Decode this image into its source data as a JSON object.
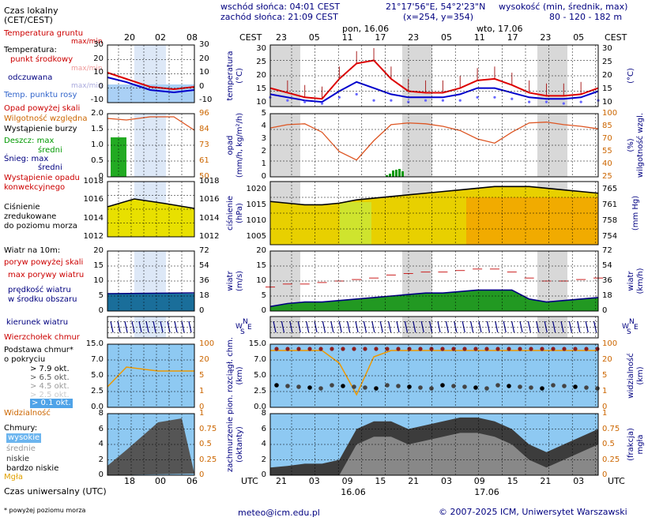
{
  "header": {
    "sunrise": "wschód słońca: 04:01 CEST",
    "sunset": "zachód słońca: 21:09 CEST",
    "coords": "21°17'56\"E, 54°2'23\"N",
    "grid": "(x=254,  y=354)",
    "elevation_title": "wysokość (min, średnik, max)",
    "elevation_values": "80 - 120 - 182 m",
    "time_label_cest": "CEST",
    "day1": "pon, 16.06",
    "day2": "wto, 17.06",
    "top_hours": [
      "23",
      "05",
      "11",
      "17",
      "23",
      "05",
      "11",
      "17",
      "23",
      "05"
    ],
    "legend_local_time": "Czas lokalny\n(CET/CEST)",
    "legend_hours_top": [
      "20",
      "02",
      "08"
    ]
  },
  "legend": {
    "temp_ground": "Temperatura gruntu",
    "temp_ground_sub": "max/min",
    "temperature": "Temperatura:",
    "dew_point_mid": "punkt środkowy",
    "dew_max_min": "max/min",
    "felt": "odczuwana",
    "felt_max_min": "max/min",
    "dew_point": "Temp. punktu rosy",
    "precip_over": "Opad powyżej skali",
    "humidity": "Wilgotność względna",
    "storm": "Wystąpienie burzy",
    "rain": "Deszcz: max",
    "rain_mean": "średni",
    "snow": "Śnieg: max",
    "snow_mean": "średni",
    "precip_conv": "Wystąpienie opadu\nkonwekcyjnego",
    "pressure": "Ciśnienie\nzredukowane\ndo poziomu morza",
    "wind_10m": "Wiatr na 10m:",
    "gust_over": "poryw powyżej skali",
    "max_gust": "max porywy wiatru",
    "wind_speed": "prędkość wiatru\nw środku obszaru",
    "wind_dir": "kierunek wiatru",
    "cloud_top": "Wierzchołek chmur",
    "cloud_base": "Podstawa chmur*\no pokryciu",
    "okt79": "> 7.9 okt.",
    "okt65": "> 6.5 okt.",
    "okt45": "> 4.5 okt.",
    "okt25": "> 2.5 okt.",
    "okt01": "> 0.1 okt.",
    "visibility": "Widzialność",
    "clouds": "Chmury:",
    "cl_high": "wysokie",
    "cl_mid": "średnie",
    "cl_low": "niskie",
    "cl_vlow": "bardzo niskie",
    "fog": "Mgła",
    "utc_time": "Czas uniwersalny (UTC)",
    "footnote": "* powyżej poziomu morza",
    "legend_hours_bottom": [
      "18",
      "00",
      "06"
    ]
  },
  "axes": {
    "temp_title": "temperatura\n(°C)",
    "temp_ticks": [
      "30",
      "25",
      "20",
      "15",
      "10"
    ],
    "temp_unit_right": "(°C)",
    "temp_right_ticks": [
      "30",
      "25",
      "20",
      "15",
      "10"
    ],
    "precip_title": "opad\n(mm/h, kg/m²/h)",
    "precip_ticks": [
      "5",
      "4",
      "3",
      "2",
      "1",
      "0"
    ],
    "humid_title": "wilgotność wzgl.",
    "humid_unit": "(%)",
    "humid_ticks": [
      "100",
      "85",
      "70",
      "55",
      "40",
      "25"
    ],
    "press_title": "ciśnienie\n(hPa)",
    "press_ticks": [
      "1020",
      "1015",
      "1010",
      "1005"
    ],
    "press_right_title": "(mm Hg)",
    "press_right_ticks": [
      "765",
      "761",
      "758",
      "754"
    ],
    "wind_title": "wiatr\n(m/s)",
    "wind_ticks": [
      "20",
      "15",
      "10",
      "5",
      "0"
    ],
    "wind_right_title": "wiatr\n(km/h)",
    "wind_right_ticks": [
      "72",
      "54",
      "36",
      "18",
      "0"
    ],
    "cloud_title": "pion. rozciągł. chm.\n(km)",
    "cloud_ticks": [
      "15.0",
      "7.0",
      "5.0",
      "2.5",
      "0.0"
    ],
    "vis_title": "widzialność\n(km)",
    "vis_ticks": [
      "100",
      "20",
      "5",
      "1",
      "0"
    ],
    "cover_title": "zachmurzenie\n(oktanty)",
    "cover_ticks": [
      "8",
      "6",
      "4",
      "2",
      "0"
    ],
    "fog_title": "(frakcja)\nmgła",
    "fog_ticks": [
      "1",
      "0.75",
      "0.5",
      "0.25",
      "0"
    ],
    "utc_label": "UTC",
    "bottom_hours": [
      "21",
      "03",
      "09",
      "15",
      "21",
      "03",
      "09",
      "15",
      "21",
      "03"
    ],
    "bottom_dates": [
      "16.06",
      "17.06"
    ],
    "compass": [
      "N",
      "W",
      "S",
      "E"
    ]
  },
  "mini_axes": {
    "temp_ticks": [
      "30",
      "20",
      "10",
      "0",
      "-10"
    ],
    "precip_ticks": [
      "2.0",
      "1.5",
      "1.0",
      "0.5",
      "0"
    ],
    "humid_ticks": [
      "96",
      "84",
      "73",
      "61",
      "50"
    ],
    "press_ticks": [
      "1018",
      "1016",
      "1014",
      "1012"
    ],
    "wind_ticks": [
      "20",
      "15",
      "10",
      "5",
      "0"
    ],
    "wind_right": [
      "72",
      "54",
      "36",
      "18",
      "0"
    ],
    "cloud_ticks": [
      "15.0",
      "7.0",
      "5.0",
      "2.5",
      "0.0"
    ],
    "vis_ticks": [
      "100",
      "20",
      "5",
      "1",
      "0"
    ],
    "cover_ticks": [
      "8",
      "6",
      "4",
      "2",
      "0"
    ],
    "fog_ticks": [
      "1",
      "0.75",
      "0.5",
      "0.25",
      "0"
    ]
  },
  "footer": {
    "email": "meteo@icm.edu.pl",
    "copyright": "© 2007-2025 ICM, Uniwersytet Warszawski"
  },
  "chart_data": {
    "type": "line",
    "title": "",
    "x": [
      "23",
      "02",
      "05",
      "08",
      "11",
      "14",
      "17",
      "20",
      "23",
      "02",
      "05",
      "08",
      "11",
      "14",
      "17",
      "20",
      "23",
      "02",
      "05",
      "08"
    ],
    "series": [
      {
        "name": "punkt środkowy",
        "values": [
          16,
          14.5,
          13,
          12.5,
          19,
          24,
          25,
          19,
          15,
          14.5,
          14.5,
          16,
          18.5,
          19,
          17,
          14.5,
          13.5,
          13.5,
          14,
          16
        ]
      },
      {
        "name": "odczuwana",
        "values": [
          14,
          13,
          12,
          11.5,
          15,
          18,
          16,
          14,
          13,
          13,
          13,
          14,
          16,
          16,
          14.5,
          13,
          12.5,
          12.5,
          13,
          15
        ]
      },
      {
        "name": "Temp. punktu rosy",
        "values": [
          13,
          12,
          11.5,
          11,
          13,
          14,
          12,
          12,
          11.5,
          12,
          12,
          12,
          13,
          13,
          12.5,
          11.5,
          11.5,
          11,
          11.5,
          12
        ]
      },
      {
        "name": "Wilgotność względna",
        "values": [
          83,
          87,
          88,
          78,
          55,
          45,
          68,
          87,
          89,
          88,
          85,
          80,
          70,
          65,
          78,
          89,
          90,
          87,
          85,
          82
        ]
      }
    ],
    "ylim": [
      10,
      30
    ]
  }
}
